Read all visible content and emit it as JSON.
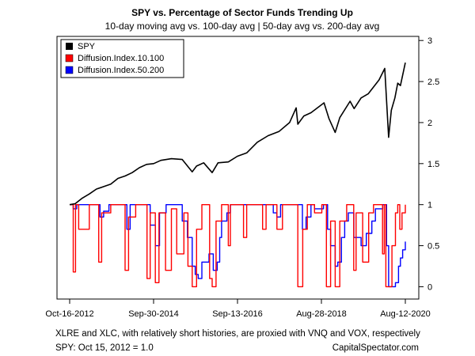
{
  "chart_data": {
    "type": "line",
    "title": "SPY vs. Percentage of Sector Funds Trending Up",
    "subtitle": "10-day moving avg vs. 100-day avg | 50-day avg vs. 200-day avg",
    "footnote_left": "XLRE and XLC, with relatively short histories, are proxied with VNQ and VOX, respectively",
    "footnote_spy": "SPY: Oct 15, 2012 = 1.0",
    "source": "CapitalSpectator.com",
    "x_ticks": [
      "Oct-16-2012",
      "Sep-30-2014",
      "Sep-13-2016",
      "Aug-28-2018",
      "Aug-12-2020"
    ],
    "x_range": [
      "2012-10-16",
      "2020-08-12"
    ],
    "y_ticks": [
      "0",
      "0.5",
      "1",
      "1.5",
      "2",
      "2.5",
      "3"
    ],
    "ylim": [
      -0.15,
      3.05
    ],
    "legend_position": "top-left",
    "series": [
      {
        "name": "SPY",
        "color": "#000000",
        "x": [
          "2012-10-16",
          "2012-12-01",
          "2013-02-01",
          "2013-04-01",
          "2013-06-01",
          "2013-08-01",
          "2013-10-01",
          "2013-12-01",
          "2014-02-01",
          "2014-04-01",
          "2014-06-01",
          "2014-08-01",
          "2014-10-01",
          "2014-12-01",
          "2015-03-01",
          "2015-06-01",
          "2015-08-25",
          "2015-10-01",
          "2015-12-01",
          "2016-02-11",
          "2016-04-01",
          "2016-06-27",
          "2016-09-13",
          "2016-12-01",
          "2017-03-01",
          "2017-06-01",
          "2017-09-01",
          "2017-12-01",
          "2018-01-26",
          "2018-02-09",
          "2018-04-01",
          "2018-06-01",
          "2018-09-20",
          "2018-11-01",
          "2018-12-24",
          "2019-02-01",
          "2019-04-30",
          "2019-06-03",
          "2019-08-01",
          "2019-10-01",
          "2020-01-01",
          "2020-02-19",
          "2020-03-23",
          "2020-04-15",
          "2020-05-15",
          "2020-06-08",
          "2020-07-01",
          "2020-08-12"
        ],
        "values": [
          1.0,
          1.01,
          1.08,
          1.13,
          1.19,
          1.22,
          1.25,
          1.32,
          1.35,
          1.39,
          1.45,
          1.49,
          1.5,
          1.54,
          1.56,
          1.55,
          1.4,
          1.47,
          1.51,
          1.39,
          1.51,
          1.52,
          1.59,
          1.63,
          1.76,
          1.84,
          1.89,
          2.0,
          2.18,
          1.98,
          2.08,
          2.12,
          2.24,
          2.05,
          1.88,
          2.06,
          2.26,
          2.17,
          2.3,
          2.35,
          2.52,
          2.66,
          1.82,
          2.15,
          2.3,
          2.48,
          2.45,
          2.73
        ]
      },
      {
        "name": "Diffusion.Index.10.100",
        "color": "#ff0000",
        "x": [
          "2012-10-16",
          "2012-11-15",
          "2012-12-05",
          "2013-01-01",
          "2013-04-01",
          "2013-06-20",
          "2013-07-15",
          "2013-10-01",
          "2014-01-31",
          "2014-03-01",
          "2014-05-01",
          "2014-08-05",
          "2014-09-01",
          "2014-10-15",
          "2014-11-15",
          "2015-01-10",
          "2015-03-01",
          "2015-04-15",
          "2015-06-15",
          "2015-07-20",
          "2015-08-25",
          "2015-10-01",
          "2015-11-15",
          "2016-01-20",
          "2016-02-11",
          "2016-03-15",
          "2016-05-01",
          "2016-06-27",
          "2016-07-15",
          "2016-09-13",
          "2016-11-04",
          "2016-12-01",
          "2017-03-01",
          "2017-04-15",
          "2017-05-15",
          "2017-08-15",
          "2017-10-01",
          "2018-01-26",
          "2018-02-09",
          "2018-03-23",
          "2018-05-01",
          "2018-07-01",
          "2018-09-01",
          "2018-10-10",
          "2018-11-15",
          "2018-12-24",
          "2019-02-01",
          "2019-04-01",
          "2019-05-31",
          "2019-06-20",
          "2019-08-15",
          "2019-10-05",
          "2019-11-15",
          "2020-01-31",
          "2020-02-15",
          "2020-02-28",
          "2020-03-23",
          "2020-04-20",
          "2020-05-20",
          "2020-06-08",
          "2020-06-26",
          "2020-07-15",
          "2020-08-12"
        ],
        "values": [
          1,
          0.18,
          1,
          0.7,
          1,
          0.3,
          0.9,
          1,
          0.2,
          0.85,
          1,
          0.1,
          0.9,
          0.05,
          0.9,
          0.2,
          0.95,
          0.4,
          0.9,
          0.25,
          0,
          0.7,
          1,
          0.1,
          0,
          0.8,
          1,
          0.5,
          1,
          1,
          0.6,
          1,
          1,
          0.7,
          1,
          0.7,
          1,
          1,
          0,
          0.7,
          1,
          0.9,
          1,
          0,
          0.8,
          0,
          0.8,
          1,
          0.2,
          0.9,
          0.3,
          0.9,
          1,
          0.4,
          1,
          0,
          0,
          0.5,
          0.9,
          1,
          0.7,
          0.9,
          1
        ]
      },
      {
        "name": "Diffusion.Index.50.200",
        "color": "#0000ff",
        "x": [
          "2012-10-16",
          "2012-11-15",
          "2012-12-15",
          "2013-01-15",
          "2013-06-01",
          "2013-07-01",
          "2013-08-01",
          "2013-09-15",
          "2014-01-15",
          "2014-02-15",
          "2014-03-15",
          "2014-08-01",
          "2014-09-01",
          "2014-10-15",
          "2014-11-20",
          "2015-01-15",
          "2015-04-01",
          "2015-06-01",
          "2015-07-15",
          "2015-08-25",
          "2015-09-20",
          "2015-10-15",
          "2015-11-15",
          "2016-01-15",
          "2016-02-20",
          "2016-03-25",
          "2016-04-15",
          "2016-05-01",
          "2016-06-15",
          "2016-07-15",
          "2017-06-01",
          "2017-07-15",
          "2017-08-15",
          "2017-09-15",
          "2018-02-25",
          "2018-03-20",
          "2018-04-20",
          "2018-06-01",
          "2018-07-01",
          "2018-09-15",
          "2018-10-20",
          "2018-11-15",
          "2018-12-24",
          "2019-01-15",
          "2019-02-15",
          "2019-03-15",
          "2019-04-15",
          "2019-06-01",
          "2019-08-01",
          "2019-09-15",
          "2019-11-01",
          "2019-12-01",
          "2020-02-01",
          "2020-03-05",
          "2020-03-23",
          "2020-05-01",
          "2020-05-20",
          "2020-06-15",
          "2020-07-01",
          "2020-07-20",
          "2020-08-12"
        ],
        "values": [
          1,
          0.95,
          1,
          1,
          1,
          0.85,
          0.92,
          1,
          1,
          0.7,
          1,
          1,
          0.75,
          0.5,
          0.9,
          1,
          1,
          0.8,
          0.6,
          0.25,
          0.15,
          0.1,
          0.3,
          0.4,
          0.2,
          0.3,
          0.6,
          0.8,
          0.9,
          1,
          1,
          0.9,
          0.85,
          1,
          1,
          0.7,
          0.85,
          1,
          0.95,
          1,
          0.7,
          0.5,
          0.25,
          0.3,
          0.6,
          0.8,
          0.9,
          0.6,
          0.5,
          0.65,
          0.8,
          0.95,
          1,
          0.5,
          0,
          0,
          0.05,
          0.25,
          0.35,
          0.45,
          0.55
        ]
      }
    ]
  }
}
